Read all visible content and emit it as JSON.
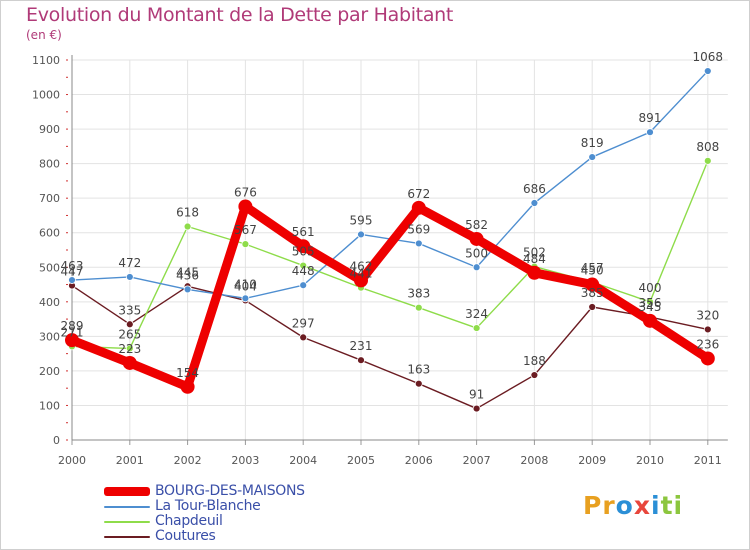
{
  "title": "Evolution du Montant de la Dette par Habitant",
  "subtitle": "(en €)",
  "logo": {
    "text": "Proxiti",
    "letters": [
      "P",
      "r",
      "o",
      "x",
      "i",
      "t",
      "i"
    ],
    "colors": [
      "#e8a020",
      "#e8a020",
      "#2b8fd6",
      "#e8463c",
      "#2b8fd6",
      "#8cc63e",
      "#8cc63e"
    ]
  },
  "chart_data": {
    "type": "line",
    "x": [
      "2000",
      "2001",
      "2002",
      "2003",
      "2004",
      "2005",
      "2006",
      "2007",
      "2008",
      "2009",
      "2010",
      "2011"
    ],
    "ylim": [
      0,
      1100
    ],
    "yticks": [
      0,
      100,
      200,
      300,
      400,
      500,
      600,
      700,
      800,
      900,
      1000,
      1100
    ],
    "grid": true,
    "legend_position": "bottom-left",
    "series": [
      {
        "name": "BOURG-DES-MAISONS",
        "color": "#ee0000",
        "values": [
          289,
          223,
          154,
          676,
          561,
          462,
          672,
          582,
          484,
          450,
          345,
          236
        ]
      },
      {
        "name": "La Tour-Blanche",
        "color": "#4e8ed0",
        "values": [
          463,
          472,
          436,
          410,
          448,
          595,
          569,
          500,
          686,
          819,
          891,
          1068
        ]
      },
      {
        "name": "Chapdeuil",
        "color": "#8edc4a",
        "values": [
          271,
          265,
          618,
          567,
          505,
          441,
          383,
          324,
          502,
          457,
          400,
          808
        ]
      },
      {
        "name": "Coutures",
        "color": "#6b1c22",
        "values": [
          447,
          335,
          445,
          404,
          297,
          231,
          163,
          91,
          188,
          385,
          356,
          320
        ]
      }
    ]
  }
}
